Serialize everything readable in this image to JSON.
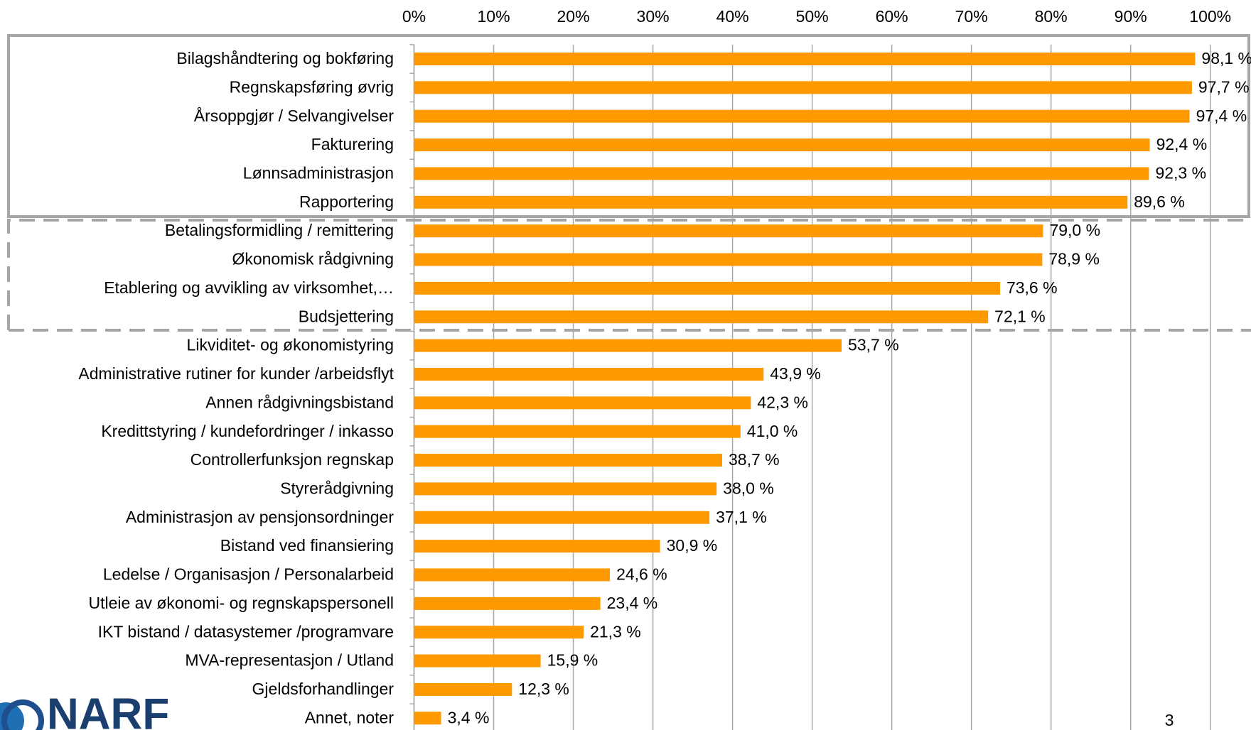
{
  "chart_data": {
    "type": "bar",
    "orientation": "horizontal",
    "categories": [
      "Bilagshåndtering og bokføring",
      "Regnskapsføring øvrig",
      "Årsoppgjør / Selvangivelser",
      "Fakturering",
      "Lønnsadministrasjon",
      "Rapportering",
      "Betalingsformidling / remittering",
      "Økonomisk rådgivning",
      "Etablering og avvikling av virksomhet,…",
      "Budsjettering",
      "Likviditet- og økonomistyring",
      "Administrative rutiner for kunder /arbeidsflyt",
      "Annen rådgivningsbistand",
      "Kredittstyring / kundefordringer / inkasso",
      "Controllerfunksjon regnskap",
      "Styrerådgivning",
      "Administrasjon av pensjonsordninger",
      "Bistand ved finansiering",
      "Ledelse / Organisasjon / Personalarbeid",
      "Utleie av økonomi- og regnskapspersonell",
      "IKT bistand / datasystemer /programvare",
      "MVA-representasjon / Utland",
      "Gjeldsforhandlinger",
      "Annet, noter"
    ],
    "values": [
      98.1,
      97.7,
      97.4,
      92.4,
      92.3,
      89.6,
      79.0,
      78.9,
      73.6,
      72.1,
      53.7,
      43.9,
      42.3,
      41.0,
      38.7,
      38.0,
      37.1,
      30.9,
      24.6,
      23.4,
      21.3,
      15.9,
      12.3,
      3.4
    ],
    "value_labels": [
      "98,1 %",
      "97,7 %",
      "97,4 %",
      "92,4 %",
      "92,3 %",
      "89,6 %",
      "79,0 %",
      "78,9 %",
      "73,6 %",
      "72,1 %",
      "53,7 %",
      "43,9 %",
      "42,3 %",
      "41,0 %",
      "38,7 %",
      "38,0 %",
      "37,1 %",
      "30,9 %",
      "24,6 %",
      "23,4 %",
      "21,3 %",
      "15,9 %",
      "12,3 %",
      "3,4 %"
    ],
    "color": "#ff9900",
    "xlim": [
      0,
      100
    ],
    "xticks": [
      {
        "value": 0,
        "label": "0%"
      },
      {
        "value": 10,
        "label": "10%"
      },
      {
        "value": 20,
        "label": "20%"
      },
      {
        "value": 30,
        "label": "30%"
      },
      {
        "value": 40,
        "label": "40%"
      },
      {
        "value": 50,
        "label": "50%"
      },
      {
        "value": 60,
        "label": "60%"
      },
      {
        "value": 70,
        "label": "70%"
      },
      {
        "value": 80,
        "label": "80%"
      },
      {
        "value": 90,
        "label": "90%"
      },
      {
        "value": 100,
        "label": "100%"
      }
    ],
    "grid": true
  },
  "logo": "NARF",
  "page_number": "3"
}
